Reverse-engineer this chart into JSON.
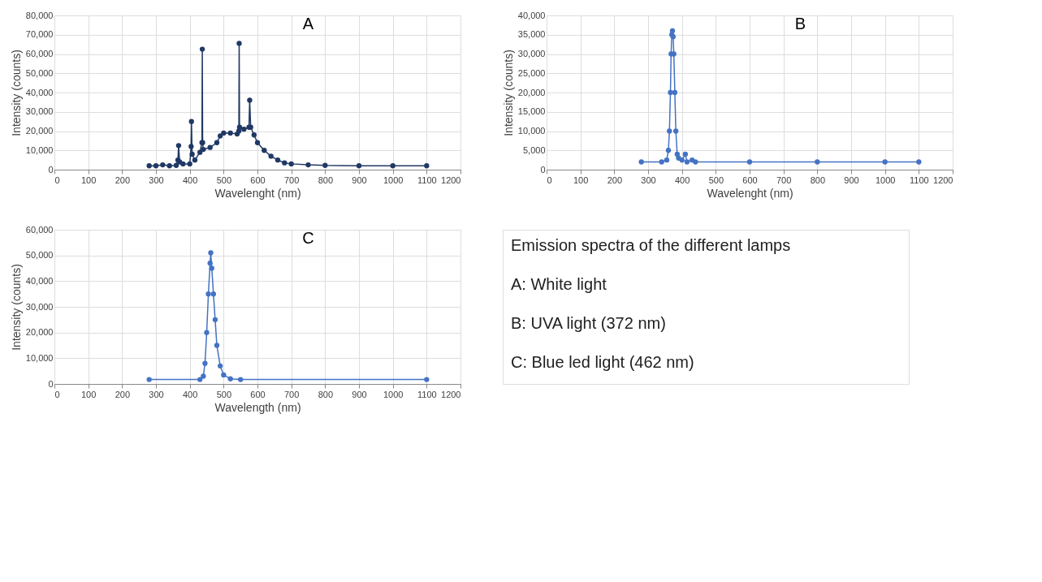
{
  "chart_data": [
    {
      "type": "line",
      "xlabel": "Wavelenght (nm)",
      "ylabel": "Intensity (counts)",
      "annotations": [
        "A"
      ],
      "xlim": [
        0,
        1200
      ],
      "xticks": [
        0,
        100,
        200,
        300,
        400,
        500,
        600,
        700,
        800,
        900,
        1000,
        1100,
        1200
      ],
      "ylim": [
        0,
        80000
      ],
      "yticks": [
        0,
        {
          "value": 10000,
          "label": "10,000"
        },
        {
          "value": 20000,
          "label": "20,000"
        },
        {
          "value": 30000,
          "label": "30,000"
        },
        {
          "value": 40000,
          "label": "40,000"
        },
        {
          "value": 50000,
          "label": "50,000"
        },
        {
          "value": 60000,
          "label": "60,000"
        },
        {
          "value": 70000,
          "label": "70,000"
        },
        {
          "value": 80000,
          "label": "80,000"
        }
      ],
      "grid": true,
      "marker": "circle",
      "series": [
        {
          "color": "#203864",
          "x": [
            280,
            300,
            320,
            340,
            360,
            365,
            367,
            370,
            380,
            400,
            404,
            405,
            407,
            415,
            430,
            436,
            437,
            438,
            440,
            460,
            480,
            490,
            500,
            520,
            540,
            545,
            546,
            547,
            560,
            575,
            577,
            580,
            590,
            600,
            620,
            640,
            660,
            680,
            700,
            750,
            800,
            900,
            1000,
            1100
          ],
          "values": [
            2000,
            2000,
            2500,
            2000,
            2200,
            5000,
            12500,
            4000,
            3000,
            3000,
            12000,
            25000,
            8000,
            5000,
            9000,
            14000,
            62500,
            14000,
            10500,
            11500,
            14000,
            17500,
            19000,
            19000,
            18500,
            20000,
            65500,
            22000,
            21000,
            22000,
            36000,
            22000,
            18000,
            14000,
            10000,
            7000,
            5000,
            3500,
            3000,
            2500,
            2200,
            2000,
            2000,
            2000
          ]
        }
      ]
    },
    {
      "type": "line",
      "xlabel": "Wavelenght (nm)",
      "ylabel": "Intensity (counts)",
      "annotations": [
        "B"
      ],
      "xlim": [
        0,
        1200
      ],
      "xticks": [
        0,
        100,
        200,
        300,
        400,
        500,
        600,
        700,
        800,
        900,
        1000,
        1100,
        1200
      ],
      "ylim": [
        0,
        40000
      ],
      "yticks": [
        0,
        {
          "value": 5000,
          "label": "5,000"
        },
        {
          "value": 10000,
          "label": "10,000"
        },
        {
          "value": 15000,
          "label": "15,000"
        },
        {
          "value": 20000,
          "label": "20,000"
        },
        {
          "value": 25000,
          "label": "25,000"
        },
        {
          "value": 30000,
          "label": "30,000"
        },
        {
          "value": 35000,
          "label": "35,000"
        },
        {
          "value": 40000,
          "label": "40,000"
        }
      ],
      "grid": true,
      "marker": "circle",
      "series": [
        {
          "color": "#4472c4",
          "x": [
            280,
            340,
            355,
            360,
            363,
            366,
            368,
            370,
            372,
            374,
            376,
            379,
            382,
            386,
            390,
            400,
            410,
            415,
            430,
            440,
            600,
            800,
            1000,
            1100
          ],
          "values": [
            2000,
            2000,
            2500,
            5000,
            10000,
            20000,
            30000,
            35000,
            36000,
            34500,
            30000,
            20000,
            10000,
            4000,
            3000,
            2500,
            4000,
            2000,
            2500,
            2000,
            2000,
            2000,
            2000,
            2000
          ]
        }
      ]
    },
    {
      "type": "line",
      "xlabel": "Wavelength (nm)",
      "ylabel": "Intensity (counts)",
      "annotations": [
        "C"
      ],
      "xlim": [
        0,
        1200
      ],
      "xticks": [
        0,
        100,
        200,
        300,
        400,
        500,
        600,
        700,
        800,
        900,
        1000,
        1100,
        1200
      ],
      "ylim": [
        0,
        60000
      ],
      "yticks": [
        0,
        {
          "value": 10000,
          "label": "10,000"
        },
        {
          "value": 20000,
          "label": "20,000"
        },
        {
          "value": 30000,
          "label": "30,000"
        },
        {
          "value": 40000,
          "label": "40,000"
        },
        {
          "value": 50000,
          "label": "50,000"
        },
        {
          "value": 60000,
          "label": "60,000"
        }
      ],
      "grid": true,
      "marker": "circle",
      "series": [
        {
          "color": "#4472c4",
          "x": [
            280,
            430,
            440,
            445,
            450,
            455,
            460,
            462,
            465,
            470,
            475,
            480,
            490,
            500,
            520,
            550,
            1100
          ],
          "values": [
            1700,
            1700,
            3000,
            8000,
            20000,
            35000,
            47000,
            51000,
            45000,
            35000,
            25000,
            15000,
            7000,
            3500,
            2000,
            1700,
            1700
          ]
        }
      ]
    },
    {
      "type": "other",
      "title": "Emission spectra of the different lamps",
      "annotations": [
        "A: White light",
        "B: UVA light (372 nm)",
        "C: Blue led light (462 nm)"
      ]
    }
  ]
}
